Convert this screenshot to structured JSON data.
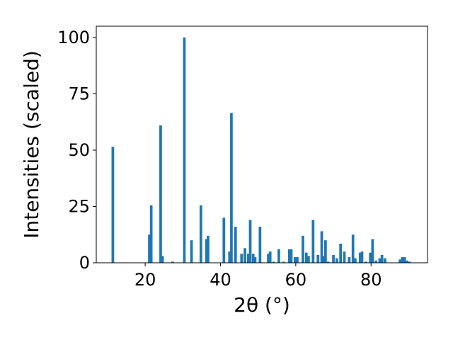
{
  "chart_data": {
    "type": "bar",
    "xlabel": "2θ (°)",
    "ylabel": "Intensities (scaled)",
    "xlim": [
      7,
      95
    ],
    "ylim": [
      0,
      105
    ],
    "xticks": [
      20,
      40,
      60,
      80
    ],
    "yticks": [
      0,
      25,
      50,
      75,
      100
    ],
    "grid": false,
    "color": "#1f77b4",
    "bar_width": 0.7,
    "x": [
      11.4,
      21.1,
      21.6,
      24.1,
      24.6,
      27.3,
      30.4,
      32.3,
      34.8,
      36.3,
      36.7,
      40.9,
      42.4,
      42.9,
      44.0,
      45.6,
      46.5,
      47.4,
      47.9,
      48.7,
      49.2,
      50.5,
      52.7,
      53.2,
      54.1,
      55.5,
      56.8,
      58.3,
      58.8,
      59.8,
      60.4,
      61.9,
      62.8,
      63.4,
      64.6,
      65.9,
      66.9,
      67.4,
      67.9,
      68.6,
      70.0,
      70.9,
      71.9,
      72.9,
      74.2,
      75.2,
      75.8,
      77.1,
      77.6,
      78.6,
      79.8,
      80.4,
      81.3,
      82.3,
      82.9,
      83.7,
      87.7,
      88.3,
      88.9,
      89.5,
      90.2
    ],
    "values": [
      51.5,
      12.5,
      25.5,
      61,
      3,
      0.5,
      100,
      10,
      25.5,
      10.5,
      12,
      20,
      5,
      66.5,
      16,
      4,
      6.5,
      4,
      19,
      4,
      2.5,
      16,
      4,
      5,
      0.5,
      6,
      0.5,
      6,
      6,
      2.5,
      2.5,
      12,
      4.5,
      3,
      19,
      3.5,
      14,
      3,
      10,
      0.5,
      3.5,
      2,
      8.5,
      5,
      2.5,
      12.5,
      2,
      4.5,
      5,
      0.5,
      4.5,
      10.5,
      1,
      2,
      3.5,
      2,
      1.5,
      2.5,
      2.5,
      1,
      0.5
    ]
  }
}
